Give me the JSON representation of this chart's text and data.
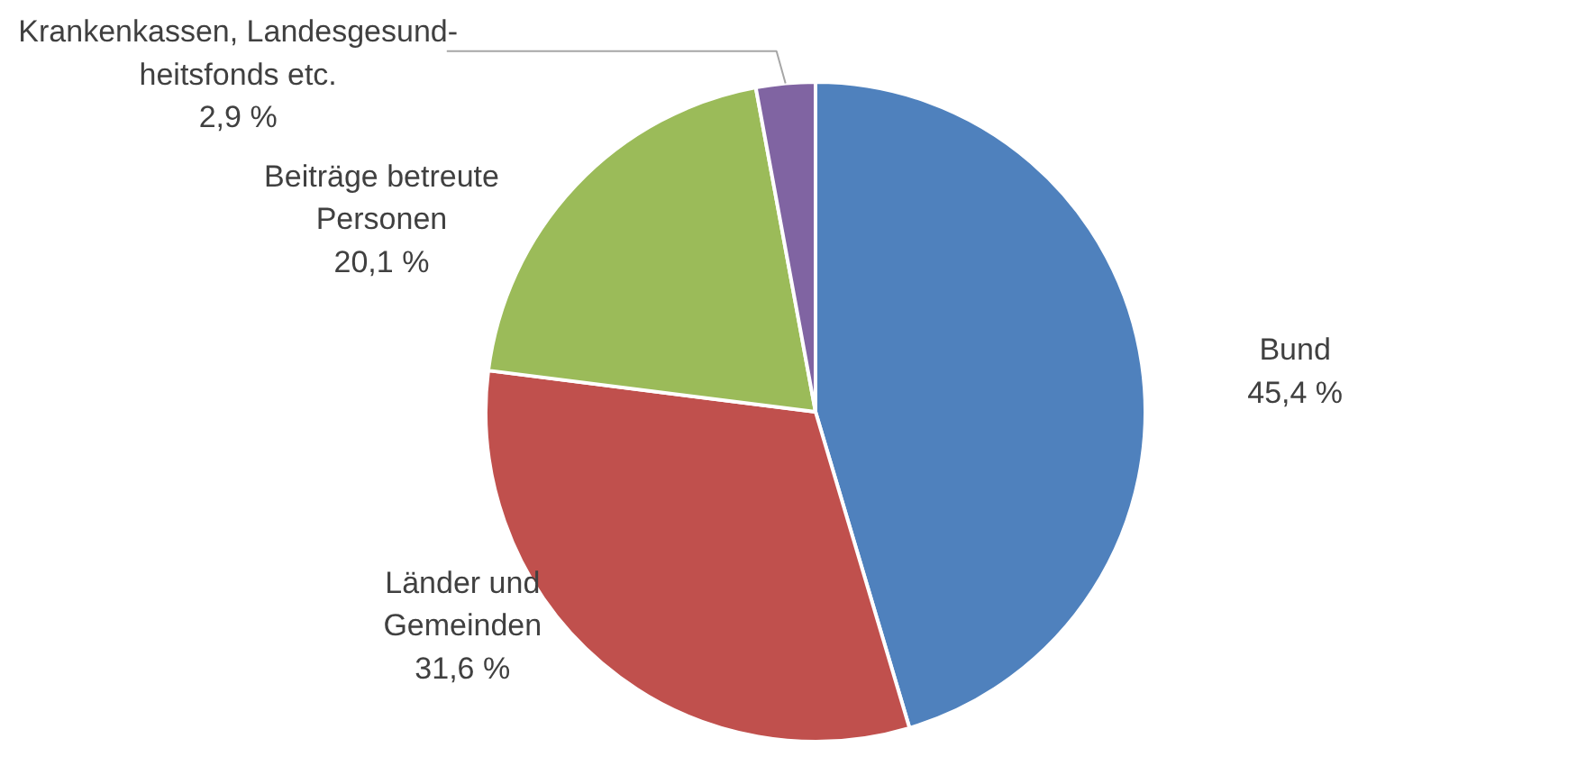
{
  "chart_data": {
    "type": "pie",
    "categories": [
      "Bund",
      "Länder und\nGemeinden",
      "Beiträge betreute\nPersonen",
      "Krankenkassen, Landesgesund-\nheitsfonds etc."
    ],
    "values": [
      45.4,
      31.6,
      20.1,
      2.9
    ],
    "colors": [
      "#4f81bd",
      "#c0504d",
      "#9bbb59",
      "#8064a2"
    ],
    "value_labels": [
      "45,4 %",
      "31,6 %",
      "20,1 %",
      "2,9 %"
    ]
  }
}
